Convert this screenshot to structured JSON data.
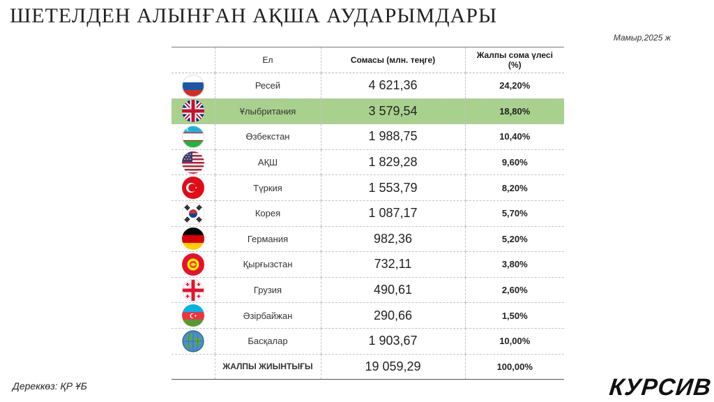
{
  "title": "ШЕТЕЛДЕН АЛЫНҒАН АҚША АУДАРЫМДАРЫ",
  "date": "Мамыр,2025 ж",
  "table": {
    "headers": {
      "country": "Ел",
      "amount": "Сомасы (млн. теңге)",
      "share_line1": "Жалпы сома үлесі",
      "share_line2": "(%)"
    },
    "rows": [
      {
        "flag": "russia-flag",
        "country": "Ресей",
        "amount": "4 621,36",
        "share": "24,20%"
      },
      {
        "flag": "uk-flag",
        "country": "Ұлыбритания",
        "amount": "3 579,54",
        "share": "18,80%"
      },
      {
        "flag": "uzbekistan-flag",
        "country": "Өзбекстан",
        "amount": "1 988,75",
        "share": "10,40%"
      },
      {
        "flag": "usa-flag",
        "country": "АҚШ",
        "amount": "1 829,28",
        "share": "9,60%"
      },
      {
        "flag": "turkey-flag",
        "country": "Түркия",
        "amount": "1 553,79",
        "share": "8,20%"
      },
      {
        "flag": "korea-flag",
        "country": "Корея",
        "amount": "1 087,17",
        "share": "5,70%"
      },
      {
        "flag": "germany-flag",
        "country": "Германия",
        "amount": "982,36",
        "share": "5,20%"
      },
      {
        "flag": "kyrgyzstan-flag",
        "country": "Қырғызстан",
        "amount": "732,11",
        "share": "3,80%"
      },
      {
        "flag": "georgia-flag",
        "country": "Грузия",
        "amount": "490,61",
        "share": "2,60%"
      },
      {
        "flag": "azerbaijan-flag",
        "country": "Әзірбайжан",
        "amount": "290,66",
        "share": "1,50%"
      },
      {
        "flag": "globe-icon",
        "country": "Басқалар",
        "amount": "1 903,67",
        "share": "10,00%"
      }
    ],
    "total": {
      "label": "ЖАЛПЫ ЖИЫНТЫҒЫ",
      "amount": "19 059,29",
      "share": "100,00%"
    }
  },
  "highlight_color": "#a9d18e",
  "source": "Дереккөз: ҚР ҰБ",
  "brand": "КУРСИВ"
}
